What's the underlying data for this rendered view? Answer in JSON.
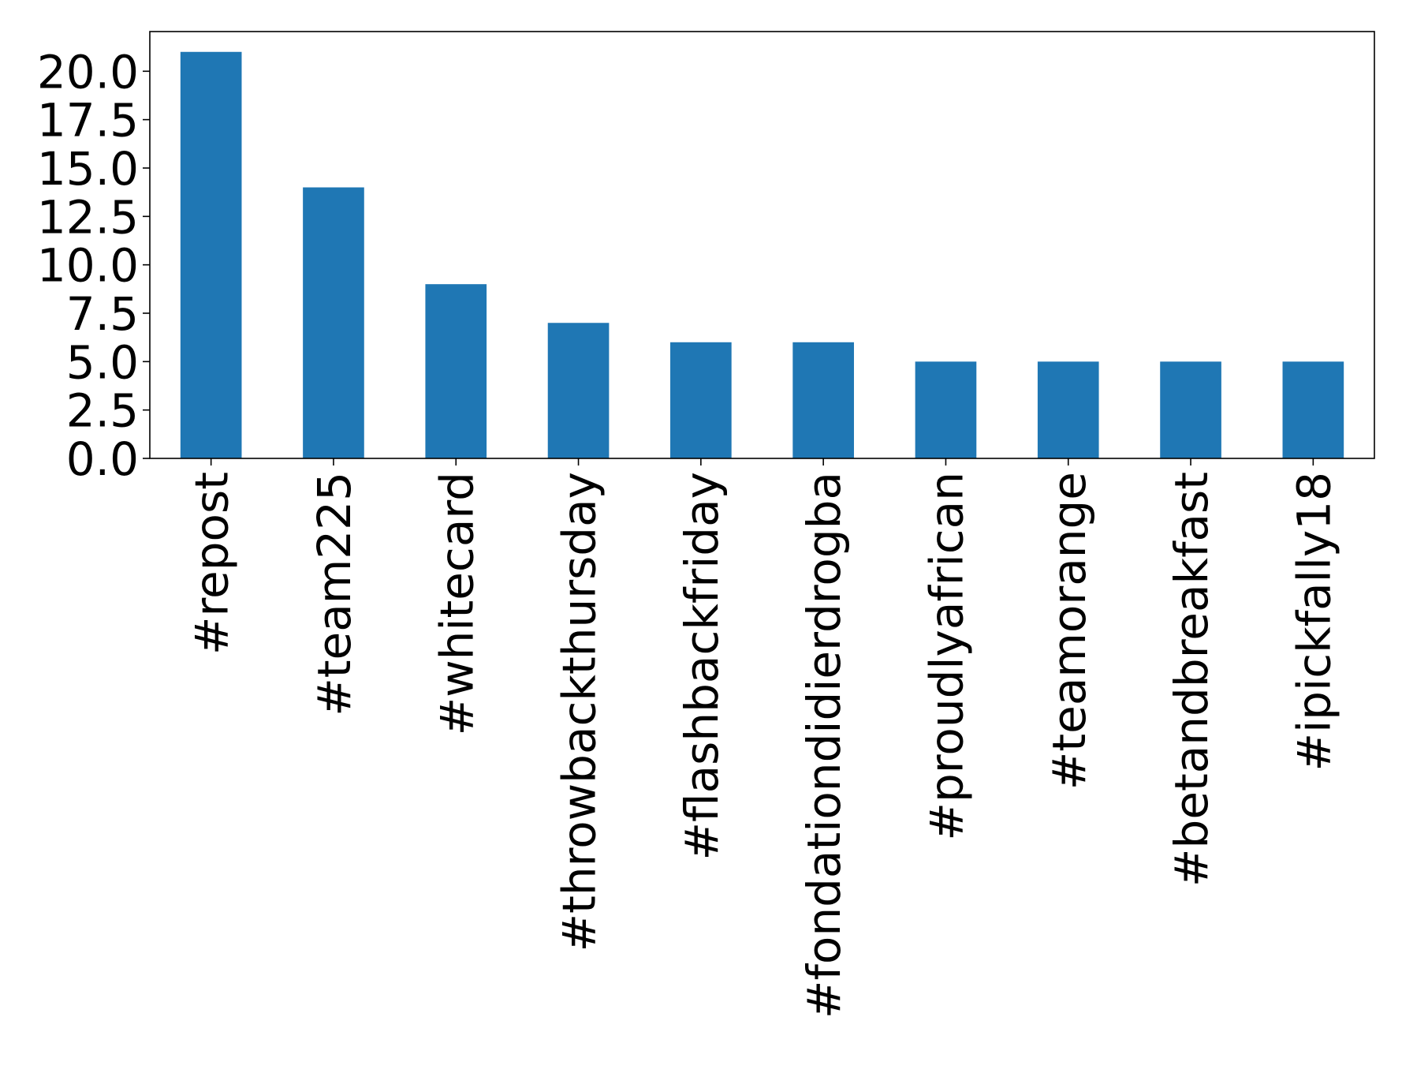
{
  "chart_data": {
    "type": "bar",
    "title": "",
    "xlabel": "",
    "ylabel": "",
    "categories": [
      "#repost",
      "#team225",
      "#whitecard",
      "#throwbackthursday",
      "#flashbackfriday",
      "#fondationdidierdrogba",
      "#proudlyafrican",
      "#teamorange",
      "#betandbreakfast",
      "#ipickfally18"
    ],
    "values": [
      21,
      14,
      9,
      7,
      6,
      6,
      5,
      5,
      5,
      5
    ],
    "ylim": [
      0,
      22.05
    ],
    "yticks": [
      0.0,
      2.5,
      5.0,
      7.5,
      10.0,
      12.5,
      15.0,
      17.5,
      20.0
    ],
    "ytick_labels": [
      "0.0",
      "2.5",
      "5.0",
      "7.5",
      "10.0",
      "12.5",
      "15.0",
      "17.5",
      "20.0"
    ],
    "bar_color": "#1f77b4",
    "grid": false,
    "legend": "none"
  }
}
